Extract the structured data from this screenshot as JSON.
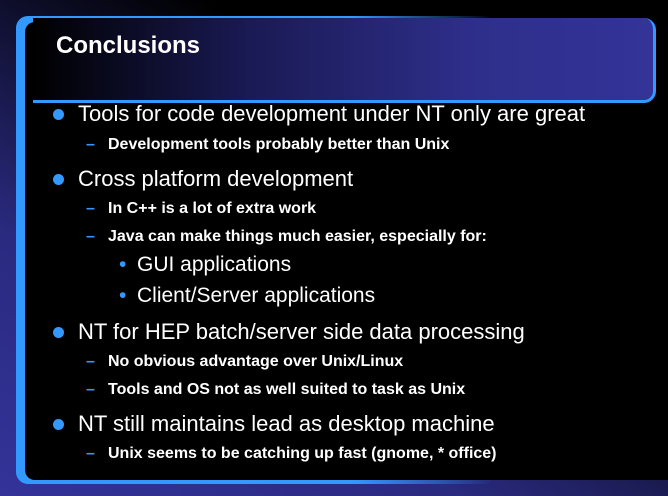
{
  "title": "Conclusions",
  "accent": "#3399ff",
  "bullets": [
    {
      "text": "Tools for code development under NT only are great",
      "sub": [
        "Development tools probably better than Unix"
      ]
    },
    {
      "text": "Cross platform development",
      "sub": [
        "In C++ is a lot of extra work",
        "Java can make things much easier, especially for:"
      ],
      "subsub": [
        "GUI applications",
        "Client/Server applications"
      ]
    },
    {
      "text": "NT for HEP batch/server side data processing",
      "sub": [
        "No obvious advantage over Unix/Linux",
        "Tools and OS not as well suited to task as Unix"
      ]
    },
    {
      "text": "NT still maintains lead as desktop machine",
      "sub": [
        "Unix seems to be catching up fast (gnome, * office)"
      ]
    }
  ]
}
